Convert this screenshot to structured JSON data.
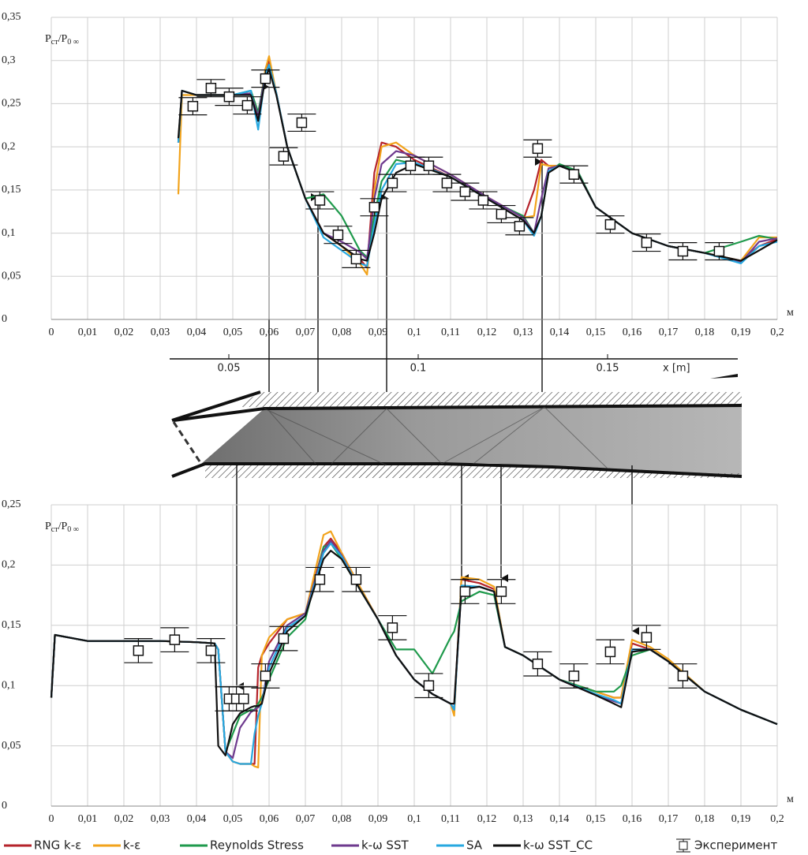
{
  "chart_data": [
    {
      "type": "line",
      "ylabel_parts": [
        "P",
        "ст",
        "/P",
        "0 ∞"
      ],
      "xunit": "м",
      "xlim": [
        0,
        0.2
      ],
      "ylim": [
        0,
        0.35
      ],
      "grid": true,
      "xticks": [
        0,
        {
          "value": 0.01,
          "label": "0,01"
        },
        {
          "value": 0.02,
          "label": "0,02"
        },
        {
          "value": 0.03,
          "label": "0,03"
        },
        {
          "value": 0.04,
          "label": "0,04"
        },
        {
          "value": 0.05,
          "label": "0,05"
        },
        {
          "value": 0.06,
          "label": "0,06"
        },
        {
          "value": 0.07,
          "label": "0,07"
        },
        {
          "value": 0.08,
          "label": "0,08"
        },
        {
          "value": 0.09,
          "label": "0,09"
        },
        {
          "value": 0.1,
          "label": "0,1"
        },
        {
          "value": 0.11,
          "label": "0,11"
        },
        {
          "value": 0.12,
          "label": "0,12"
        },
        {
          "value": 0.13,
          "label": "0,13"
        },
        {
          "value": 0.14,
          "label": "0,14"
        },
        {
          "value": 0.15,
          "label": "0,15"
        },
        {
          "value": 0.16,
          "label": "0,16"
        },
        {
          "value": 0.17,
          "label": "0,17"
        },
        {
          "value": 0.18,
          "label": "0,18"
        },
        {
          "value": 0.19,
          "label": "0,19"
        },
        {
          "value": 0.2,
          "label": "0,2"
        }
      ],
      "yticks": [
        0,
        {
          "value": 0.05,
          "label": "0,05"
        },
        {
          "value": 0.1,
          "label": "0,1"
        },
        {
          "value": 0.15,
          "label": "0,15"
        },
        {
          "value": 0.2,
          "label": "0,2"
        },
        {
          "value": 0.25,
          "label": "0,25"
        },
        {
          "value": 0.3,
          "label": "0,3"
        },
        {
          "value": 0.35,
          "label": "0,35"
        }
      ],
      "x": [
        0.035,
        0.036,
        0.04,
        0.05,
        0.055,
        0.057,
        0.059,
        0.06,
        0.062,
        0.065,
        0.07,
        0.075,
        0.08,
        0.085,
        0.087,
        0.089,
        0.091,
        0.095,
        0.1,
        0.11,
        0.12,
        0.13,
        0.133,
        0.135,
        0.137,
        0.14,
        0.145,
        0.15,
        0.16,
        0.17,
        0.18,
        0.19,
        0.195,
        0.2
      ],
      "series": [
        {
          "color": "#b5232b",
          "values": [
            0.205,
            0.265,
            0.26,
            0.26,
            0.262,
            0.235,
            0.29,
            0.3,
            0.262,
            0.2,
            0.14,
            0.1,
            0.085,
            0.07,
            0.06,
            0.17,
            0.205,
            0.2,
            0.185,
            0.165,
            0.14,
            0.115,
            0.15,
            0.185,
            0.178,
            0.178,
            0.17,
            0.13,
            0.1,
            0.085,
            0.077,
            0.068,
            0.085,
            0.093
          ]
        },
        {
          "color": "#f2a31b",
          "values": [
            0.145,
            0.26,
            0.26,
            0.26,
            0.262,
            0.235,
            0.29,
            0.305,
            0.262,
            0.2,
            0.14,
            0.1,
            0.085,
            0.065,
            0.052,
            0.15,
            0.2,
            0.205,
            0.19,
            0.168,
            0.142,
            0.118,
            0.12,
            0.18,
            0.178,
            0.178,
            0.17,
            0.13,
            0.1,
            0.085,
            0.077,
            0.068,
            0.095,
            0.095
          ]
        },
        {
          "color": "#1f9a4c",
          "values": [
            0.205,
            0.265,
            0.26,
            0.26,
            0.265,
            0.24,
            0.285,
            0.295,
            0.262,
            0.2,
            0.14,
            0.145,
            0.12,
            0.08,
            0.072,
            0.12,
            0.16,
            0.185,
            0.18,
            0.165,
            0.14,
            0.12,
            0.1,
            0.12,
            0.17,
            0.18,
            0.172,
            0.13,
            0.1,
            0.085,
            0.077,
            0.09,
            0.097,
            0.093
          ]
        },
        {
          "color": "#6e3a8e",
          "values": [
            0.205,
            0.265,
            0.26,
            0.26,
            0.262,
            0.235,
            0.285,
            0.295,
            0.262,
            0.2,
            0.14,
            0.1,
            0.09,
            0.078,
            0.07,
            0.14,
            0.18,
            0.195,
            0.19,
            0.168,
            0.142,
            0.118,
            0.1,
            0.14,
            0.175,
            0.178,
            0.17,
            0.13,
            0.1,
            0.085,
            0.077,
            0.066,
            0.09,
            0.094
          ]
        },
        {
          "color": "#27a8e0",
          "values": [
            0.205,
            0.265,
            0.26,
            0.26,
            0.265,
            0.22,
            0.285,
            0.295,
            0.262,
            0.2,
            0.14,
            0.095,
            0.08,
            0.065,
            0.062,
            0.11,
            0.15,
            0.18,
            0.182,
            0.165,
            0.14,
            0.115,
            0.097,
            0.12,
            0.172,
            0.178,
            0.17,
            0.13,
            0.1,
            0.085,
            0.077,
            0.065,
            0.085,
            0.09
          ]
        },
        {
          "color": "#111111",
          "values": [
            0.21,
            0.265,
            0.26,
            0.26,
            0.26,
            0.23,
            0.28,
            0.29,
            0.26,
            0.2,
            0.14,
            0.1,
            0.085,
            0.07,
            0.068,
            0.1,
            0.14,
            0.17,
            0.18,
            0.165,
            0.14,
            0.115,
            0.1,
            0.12,
            0.17,
            0.178,
            0.17,
            0.13,
            0.1,
            0.085,
            0.077,
            0.068,
            0.08,
            0.092
          ]
        }
      ],
      "experiment": {
        "error": 0.01,
        "x": [
          0.039,
          0.044,
          0.049,
          0.054,
          0.059,
          0.064,
          0.069,
          0.074,
          0.079,
          0.084,
          0.089,
          0.094,
          0.099,
          0.104,
          0.109,
          0.114,
          0.119,
          0.124,
          0.129,
          0.134,
          0.144,
          0.154,
          0.164,
          0.174,
          0.184
        ],
        "values": [
          0.247,
          0.268,
          0.258,
          0.248,
          0.279,
          0.189,
          0.228,
          0.138,
          0.098,
          0.07,
          0.13,
          0.158,
          0.178,
          0.178,
          0.158,
          0.148,
          0.138,
          0.122,
          0.108,
          0.198,
          0.168,
          0.11,
          0.089,
          0.079,
          0.079
        ]
      }
    },
    {
      "type": "line",
      "ylabel_parts": [
        "P",
        "ст",
        "/P",
        "0 ∞"
      ],
      "xunit": "м",
      "xlim": [
        0,
        0.2
      ],
      "ylim": [
        0,
        0.25
      ],
      "grid": true,
      "xticks": [
        0,
        {
          "value": 0.01,
          "label": "0,01"
        },
        {
          "value": 0.02,
          "label": "0,02"
        },
        {
          "value": 0.03,
          "label": "0,03"
        },
        {
          "value": 0.04,
          "label": "0,04"
        },
        {
          "value": 0.05,
          "label": "0,05"
        },
        {
          "value": 0.06,
          "label": "0,06"
        },
        {
          "value": 0.07,
          "label": "0,07"
        },
        {
          "value": 0.08,
          "label": "0,08"
        },
        {
          "value": 0.09,
          "label": "0,09"
        },
        {
          "value": 0.1,
          "label": "0,1"
        },
        {
          "value": 0.11,
          "label": "0,11"
        },
        {
          "value": 0.12,
          "label": "0,12"
        },
        {
          "value": 0.13,
          "label": "0,13"
        },
        {
          "value": 0.14,
          "label": "0,14"
        },
        {
          "value": 0.15,
          "label": "0,15"
        },
        {
          "value": 0.16,
          "label": "0,16"
        },
        {
          "value": 0.17,
          "label": "0,17"
        },
        {
          "value": 0.18,
          "label": "0,18"
        },
        {
          "value": 0.19,
          "label": "0,19"
        },
        {
          "value": 0.2,
          "label": "0,2"
        }
      ],
      "yticks": [
        0,
        {
          "value": 0.05,
          "label": "0,05"
        },
        {
          "value": 0.1,
          "label": "0,1"
        },
        {
          "value": 0.15,
          "label": "0,15"
        },
        {
          "value": 0.2,
          "label": "0,2"
        },
        {
          "value": 0.25,
          "label": "0,25"
        }
      ],
      "x": [
        0,
        0.001,
        0.01,
        0.02,
        0.03,
        0.04,
        0.045,
        0.046,
        0.048,
        0.05,
        0.052,
        0.055,
        0.056,
        0.057,
        0.058,
        0.06,
        0.065,
        0.07,
        0.075,
        0.077,
        0.08,
        0.085,
        0.09,
        0.095,
        0.1,
        0.105,
        0.11,
        0.111,
        0.113,
        0.118,
        0.122,
        0.125,
        0.13,
        0.14,
        0.15,
        0.155,
        0.157,
        0.16,
        0.165,
        0.17,
        0.18,
        0.19,
        0.2
      ],
      "series": [
        {
          "name": "RNG k-ε",
          "color": "#b5232b",
          "values": [
            0.09,
            0.142,
            0.137,
            0.137,
            0.137,
            0.136,
            0.135,
            0.13,
            0.045,
            0.037,
            0.035,
            0.035,
            0.035,
            0.115,
            0.125,
            0.135,
            0.155,
            0.16,
            0.215,
            0.222,
            0.21,
            0.182,
            0.155,
            0.125,
            0.105,
            0.093,
            0.085,
            0.08,
            0.188,
            0.185,
            0.18,
            0.132,
            0.125,
            0.105,
            0.095,
            0.09,
            0.09,
            0.135,
            0.13,
            0.12,
            0.095,
            0.08,
            0.068
          ]
        },
        {
          "name": "k-ε",
          "color": "#f2a31b",
          "values": [
            0.09,
            0.142,
            0.137,
            0.137,
            0.137,
            0.136,
            0.135,
            0.13,
            0.045,
            0.037,
            0.035,
            0.035,
            0.033,
            0.032,
            0.125,
            0.14,
            0.155,
            0.16,
            0.225,
            0.228,
            0.21,
            0.182,
            0.155,
            0.125,
            0.105,
            0.093,
            0.085,
            0.075,
            0.19,
            0.188,
            0.182,
            0.132,
            0.125,
            0.105,
            0.095,
            0.09,
            0.09,
            0.138,
            0.132,
            0.122,
            0.095,
            0.08,
            0.068
          ]
        },
        {
          "name": "Reynolds Stress",
          "color": "#1f9a4c",
          "values": [
            0.09,
            0.142,
            0.137,
            0.137,
            0.137,
            0.136,
            0.135,
            0.13,
            0.045,
            0.06,
            0.075,
            0.08,
            0.08,
            0.085,
            0.09,
            0.105,
            0.14,
            0.155,
            0.215,
            0.218,
            0.205,
            0.18,
            0.155,
            0.13,
            0.13,
            0.11,
            0.14,
            0.145,
            0.17,
            0.178,
            0.175,
            0.132,
            0.125,
            0.105,
            0.095,
            0.095,
            0.1,
            0.125,
            0.13,
            0.12,
            0.095,
            0.08,
            0.068
          ]
        },
        {
          "name": "k-ω SST",
          "color": "#6e3a8e",
          "values": [
            0.09,
            0.142,
            0.137,
            0.137,
            0.137,
            0.136,
            0.135,
            0.13,
            0.045,
            0.04,
            0.065,
            0.078,
            0.08,
            0.082,
            0.085,
            0.12,
            0.15,
            0.16,
            0.212,
            0.22,
            0.208,
            0.18,
            0.155,
            0.125,
            0.105,
            0.093,
            0.085,
            0.08,
            0.182,
            0.182,
            0.178,
            0.132,
            0.125,
            0.105,
            0.092,
            0.087,
            0.085,
            0.13,
            0.13,
            0.12,
            0.095,
            0.08,
            0.068
          ]
        },
        {
          "name": "SA",
          "color": "#27a8e0",
          "values": [
            0.09,
            0.142,
            0.137,
            0.137,
            0.137,
            0.136,
            0.135,
            0.13,
            0.045,
            0.037,
            0.035,
            0.035,
            0.06,
            0.075,
            0.085,
            0.115,
            0.148,
            0.158,
            0.21,
            0.218,
            0.207,
            0.18,
            0.155,
            0.125,
            0.105,
            0.093,
            0.085,
            0.08,
            0.183,
            0.182,
            0.178,
            0.132,
            0.125,
            0.105,
            0.093,
            0.088,
            0.085,
            0.13,
            0.13,
            0.12,
            0.095,
            0.08,
            0.068
          ]
        },
        {
          "name": "k-ω SST_CC",
          "color": "#111111",
          "values": [
            0.09,
            0.142,
            0.137,
            0.137,
            0.137,
            0.136,
            0.135,
            0.05,
            0.042,
            0.068,
            0.077,
            0.082,
            0.083,
            0.083,
            0.085,
            0.11,
            0.145,
            0.158,
            0.205,
            0.212,
            0.205,
            0.18,
            0.155,
            0.125,
            0.105,
            0.093,
            0.085,
            0.085,
            0.18,
            0.182,
            0.178,
            0.132,
            0.125,
            0.105,
            0.092,
            0.085,
            0.082,
            0.128,
            0.13,
            0.12,
            0.095,
            0.08,
            0.068
          ]
        }
      ],
      "experiment": {
        "name": "Эксперимент",
        "error": 0.01,
        "x": [
          0.024,
          0.034,
          0.044,
          0.049,
          0.051,
          0.053,
          0.059,
          0.064,
          0.074,
          0.084,
          0.094,
          0.104,
          0.114,
          0.124,
          0.134,
          0.144,
          0.154,
          0.164,
          0.174
        ],
        "values": [
          0.129,
          0.138,
          0.129,
          0.089,
          0.089,
          0.089,
          0.108,
          0.139,
          0.188,
          0.188,
          0.148,
          0.1,
          0.178,
          0.178,
          0.118,
          0.108,
          0.128,
          0.14,
          0.108
        ]
      },
      "legend": "bottom"
    }
  ],
  "schlieren": {
    "scale_ticks": [
      0.05,
      0.1,
      0.15
    ],
    "scale_label": "x [m]"
  }
}
